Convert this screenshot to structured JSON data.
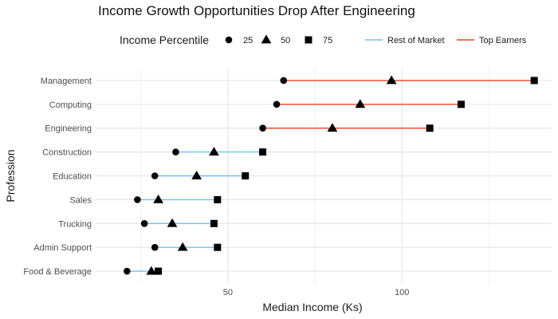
{
  "chart_data": {
    "type": "dumbbell",
    "title": "Income Growth Opportunities Drop After Engineering",
    "xlabel": "Median Income (Ks)",
    "ylabel": "Profession",
    "xlim": [
      12,
      143
    ],
    "x_ticks": [
      50,
      100
    ],
    "grid": true,
    "legend_placement": "top",
    "legend": {
      "shape_title": "Income Percentile",
      "shapes": [
        {
          "label": "25",
          "shape": "circle"
        },
        {
          "label": "50",
          "shape": "triangle"
        },
        {
          "label": "75",
          "shape": "square"
        }
      ],
      "lines": [
        {
          "label": "Rest of Market",
          "color": "#74c0f0"
        },
        {
          "label": "Top Earners",
          "color": "#e8431a"
        }
      ]
    },
    "categories": [
      "Management",
      "Computing",
      "Engineering",
      "Construction",
      "Education",
      "Sales",
      "Trucking",
      "Admin Support",
      "Food & Beverage"
    ],
    "p25": [
      66,
      64,
      60,
      35,
      29,
      24,
      26,
      29,
      21
    ],
    "p50": [
      97,
      88,
      80,
      46,
      41,
      30,
      34,
      37,
      28
    ],
    "p75": [
      138,
      117,
      108,
      60,
      55,
      47,
      46,
      47,
      30
    ],
    "group": [
      "Top Earners",
      "Top Earners",
      "Top Earners",
      "Rest of Market",
      "Rest of Market",
      "Rest of Market",
      "Rest of Market",
      "Rest of Market",
      "Rest of Market"
    ]
  }
}
